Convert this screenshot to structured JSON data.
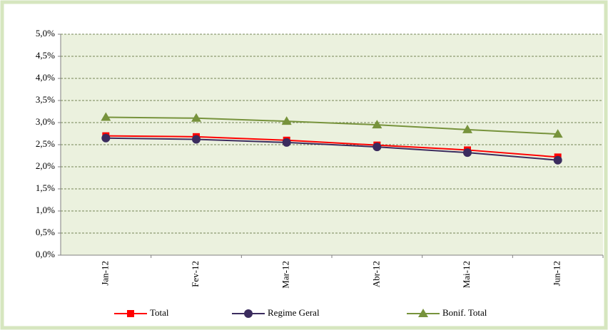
{
  "chart_data": {
    "type": "line",
    "categories": [
      "Jan-12",
      "Fev-12",
      "Mar-12",
      "Abr-12",
      "Mai-12",
      "Jun-12"
    ],
    "series": [
      {
        "name": "Total",
        "color": "#ff0000",
        "marker": "square",
        "values": [
          2.7,
          2.68,
          2.6,
          2.49,
          2.38,
          2.22
        ]
      },
      {
        "name": "Regime Geral",
        "color": "#3b2c5e",
        "marker": "circle",
        "values": [
          2.65,
          2.62,
          2.55,
          2.45,
          2.32,
          2.15
        ]
      },
      {
        "name": "Bonif. Total",
        "color": "#77933c",
        "marker": "triangle",
        "values": [
          3.12,
          3.1,
          3.03,
          2.95,
          2.84,
          2.74
        ]
      }
    ],
    "ylim": [
      0,
      5
    ],
    "yticks": [
      {
        "value": 0,
        "label": "0,0%"
      },
      {
        "value": 0.5,
        "label": "0,5%"
      },
      {
        "value": 1,
        "label": "1,0%"
      },
      {
        "value": 1.5,
        "label": "1,5%"
      },
      {
        "value": 2,
        "label": "2,0%"
      },
      {
        "value": 2.5,
        "label": "2,5%"
      },
      {
        "value": 3,
        "label": "3,0%"
      },
      {
        "value": 3.5,
        "label": "3,5%"
      },
      {
        "value": 4,
        "label": "4,0%"
      },
      {
        "value": 4.5,
        "label": "4,5%"
      },
      {
        "value": 5,
        "label": "5,0%"
      }
    ],
    "grid": true,
    "legend": "bottom"
  }
}
